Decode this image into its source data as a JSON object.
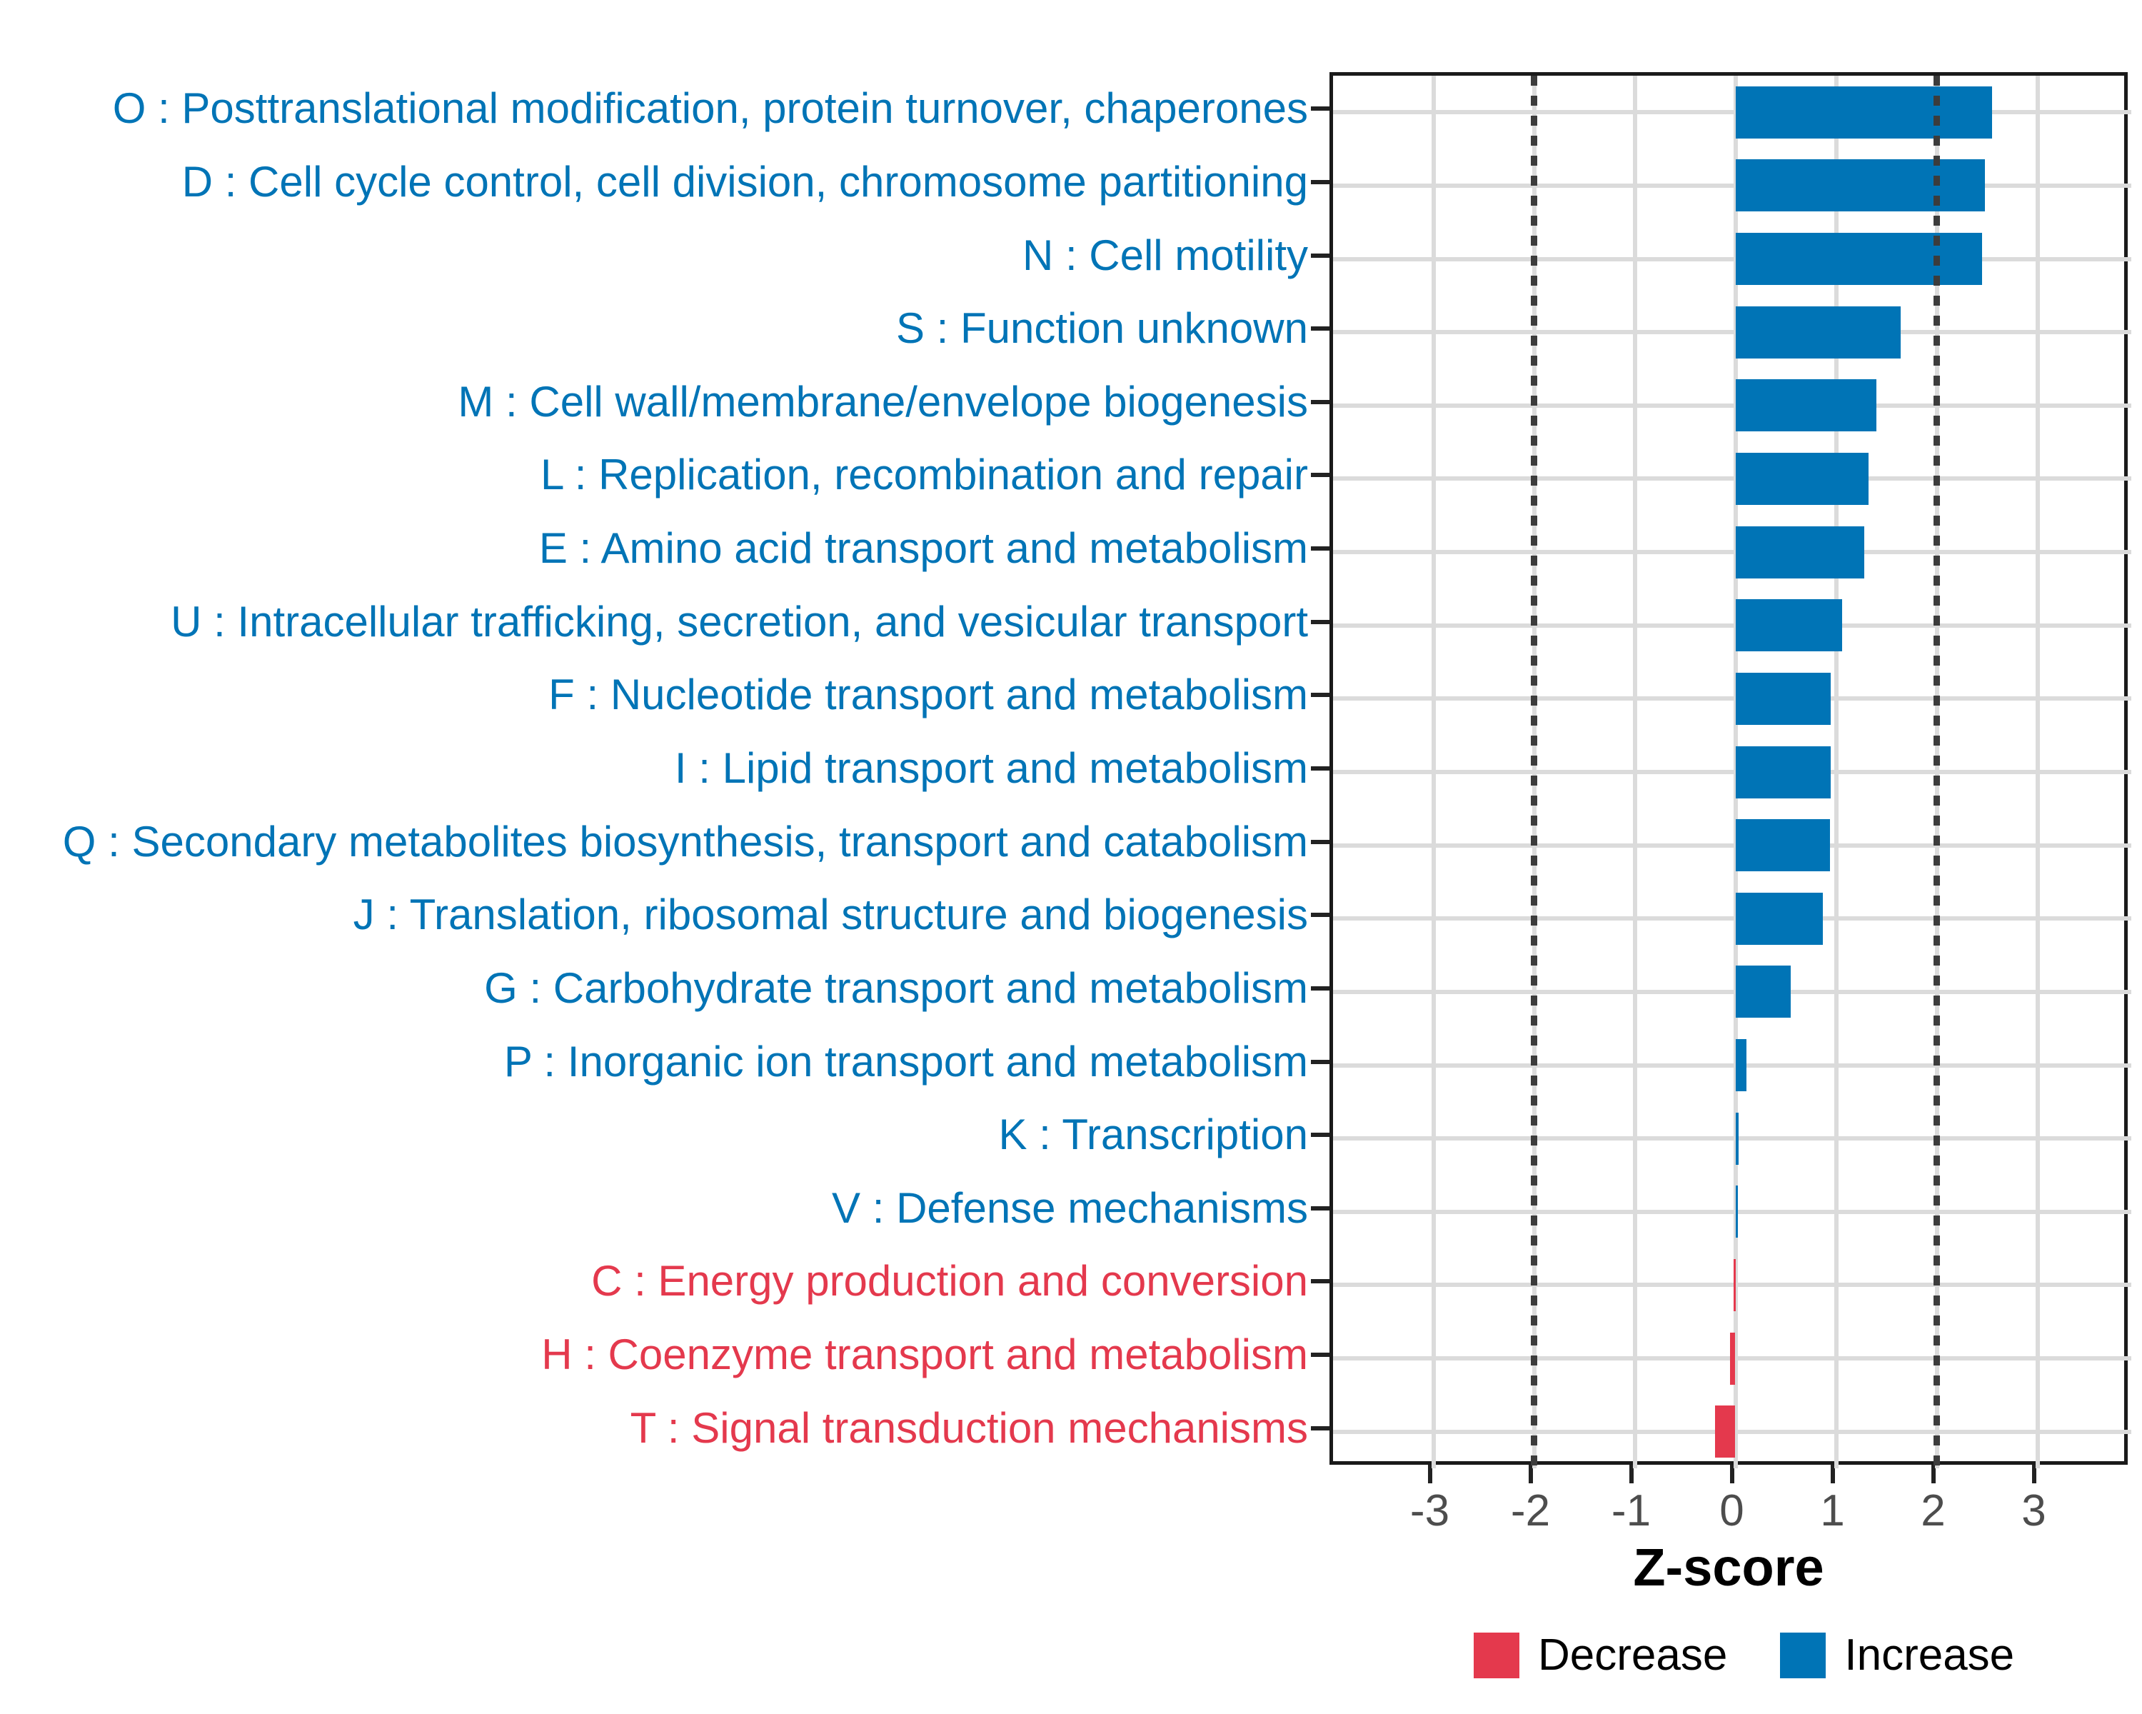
{
  "chart_data": {
    "type": "bar",
    "orientation": "horizontal",
    "xlabel": "Z-score",
    "x_ticks": [
      -3,
      -2,
      -1,
      0,
      1,
      2,
      3
    ],
    "xlim": [
      -4.0,
      3.93
    ],
    "reference_lines": [
      -2,
      2
    ],
    "grid": "on",
    "categories": [
      {
        "label": "O : Posttranslational modification, protein turnover, chaperones",
        "value": 2.55,
        "direction": "increase"
      },
      {
        "label": "D : Cell cycle control, cell division, chromosome partitioning",
        "value": 2.48,
        "direction": "increase"
      },
      {
        "label": "N : Cell motility",
        "value": 2.45,
        "direction": "increase"
      },
      {
        "label": "S : Function unknown",
        "value": 1.64,
        "direction": "increase"
      },
      {
        "label": "M : Cell wall/membrane/envelope biogenesis",
        "value": 1.4,
        "direction": "increase"
      },
      {
        "label": "L : Replication, recombination and repair",
        "value": 1.32,
        "direction": "increase"
      },
      {
        "label": "E : Amino acid transport and metabolism",
        "value": 1.28,
        "direction": "increase"
      },
      {
        "label": "U : Intracellular trafficking, secretion, and vesicular transport",
        "value": 1.06,
        "direction": "increase"
      },
      {
        "label": "F : Nucleotide transport and metabolism",
        "value": 0.95,
        "direction": "increase"
      },
      {
        "label": "I : Lipid transport and metabolism",
        "value": 0.95,
        "direction": "increase"
      },
      {
        "label": "Q : Secondary metabolites biosynthesis, transport and catabolism",
        "value": 0.94,
        "direction": "increase"
      },
      {
        "label": "J : Translation, ribosomal structure and biogenesis",
        "value": 0.87,
        "direction": "increase"
      },
      {
        "label": "G : Carbohydrate transport and metabolism",
        "value": 0.55,
        "direction": "increase"
      },
      {
        "label": "P : Inorganic ion transport and metabolism",
        "value": 0.11,
        "direction": "increase"
      },
      {
        "label": "K : Transcription",
        "value": 0.03,
        "direction": "increase"
      },
      {
        "label": "V : Defense mechanisms",
        "value": 0.02,
        "direction": "increase"
      },
      {
        "label": "C : Energy production and conversion",
        "value": -0.02,
        "direction": "decrease"
      },
      {
        "label": "H : Coenzyme transport and metabolism",
        "value": -0.05,
        "direction": "decrease"
      },
      {
        "label": "T : Signal transduction mechanisms",
        "value": -0.2,
        "direction": "decrease"
      }
    ]
  },
  "legend": {
    "items": [
      {
        "label": "Decrease",
        "direction": "decrease"
      },
      {
        "label": "Increase",
        "direction": "increase"
      }
    ]
  },
  "colors": {
    "increase": "#0074B6",
    "decrease": "#E4394D",
    "gridline": "#DBDBDB",
    "reference_line": "#3C3C3C",
    "axis_text": "#4D4D4D",
    "axis_line": "#1A1A1A"
  }
}
